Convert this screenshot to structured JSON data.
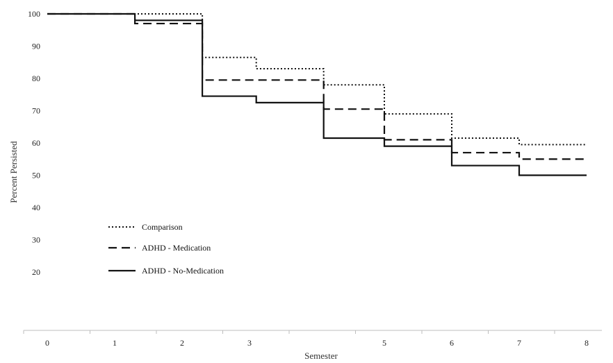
{
  "chart_data": {
    "type": "line",
    "step": true,
    "title": "",
    "xlabel": "Semester",
    "ylabel": "Percent Persisted",
    "xlim": [
      0,
      8
    ],
    "x_ticks": [
      0,
      1,
      2,
      3,
      5,
      6,
      7,
      8
    ],
    "y_ticks": [
      20,
      30,
      40,
      50,
      60,
      70,
      80,
      90,
      100
    ],
    "grid": false,
    "legend_position": "lower-left",
    "series": [
      {
        "name": "Comparison",
        "style": "dotted",
        "points": [
          [
            0,
            100
          ],
          [
            1.3,
            100
          ],
          [
            2.3,
            86.5
          ],
          [
            3.1,
            83
          ],
          [
            4.1,
            78
          ],
          [
            5,
            69
          ],
          [
            6,
            61.5
          ],
          [
            7,
            59.5
          ],
          [
            8,
            59.5
          ]
        ]
      },
      {
        "name": "ADHD - Medication",
        "style": "dashed",
        "points": [
          [
            0,
            100
          ],
          [
            1.3,
            97
          ],
          [
            2.3,
            79.5
          ],
          [
            4.1,
            70.5
          ],
          [
            5,
            61
          ],
          [
            6,
            57
          ],
          [
            7,
            55
          ],
          [
            8,
            55
          ]
        ]
      },
      {
        "name": "ADHD - No-Medication",
        "style": "solid",
        "points": [
          [
            0,
            100
          ],
          [
            1.3,
            98
          ],
          [
            2.3,
            74.5
          ],
          [
            3.1,
            72.5
          ],
          [
            4.1,
            61.5
          ],
          [
            5,
            59
          ],
          [
            6,
            53
          ],
          [
            7,
            50
          ],
          [
            8,
            50
          ]
        ]
      }
    ]
  }
}
